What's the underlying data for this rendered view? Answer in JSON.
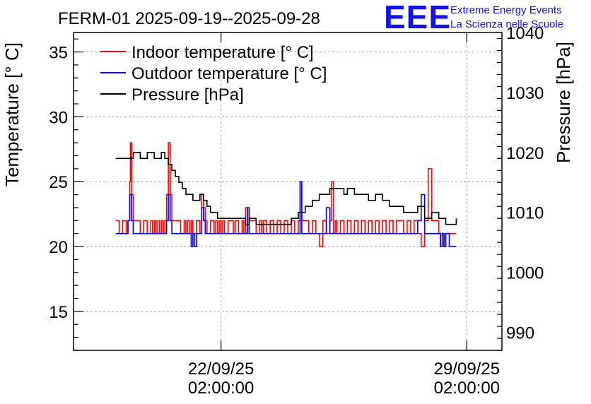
{
  "chart_data": {
    "type": "line",
    "title": "FERM-01 2025-09-19--2025-09-28",
    "logo": {
      "mark": "EEE",
      "line1": "Extreme Energy Events",
      "line2": "La Scienza nelle Scuole",
      "color": "#1010ff"
    },
    "ylabel": "Temperature [° C]",
    "y2label": "Pressure [hPa]",
    "ylim": [
      12,
      36.5
    ],
    "y2lim": [
      987,
      1040
    ],
    "yticks": [
      15,
      20,
      25,
      30,
      35
    ],
    "y2ticks": [
      990,
      1000,
      1010,
      1020,
      1030,
      1040
    ],
    "xlim": [
      -1.2,
      11.0
    ],
    "xticks": [
      {
        "x": 3.0,
        "date": "22/09/25",
        "time": "02:00:00"
      },
      {
        "x": 10.0,
        "date": "29/09/25",
        "time": "02:00:00"
      }
    ],
    "grid": true,
    "legend_position": "top-left",
    "series": [
      {
        "name": "Indoor temperature [° C]",
        "color": "#ff0000",
        "axis": "left",
        "x": [
          0.0,
          0.1,
          0.2,
          0.3,
          0.35,
          0.4,
          0.42,
          0.45,
          0.5,
          0.6,
          0.7,
          0.8,
          0.9,
          1.0,
          1.05,
          1.1,
          1.15,
          1.2,
          1.25,
          1.3,
          1.35,
          1.4,
          1.45,
          1.5,
          1.55,
          1.6,
          1.7,
          1.8,
          1.85,
          1.9,
          1.95,
          2.0,
          2.05,
          2.1,
          2.15,
          2.2,
          2.3,
          2.4,
          2.45,
          2.5,
          2.55,
          2.6,
          2.7,
          2.8,
          2.85,
          2.9,
          2.95,
          3.0,
          3.05,
          3.1,
          3.2,
          3.3,
          3.35,
          3.4,
          3.5,
          3.6,
          3.65,
          3.7,
          3.75,
          3.8,
          3.9,
          4.0,
          4.1,
          4.15,
          4.2,
          4.3,
          4.4,
          4.5,
          4.6,
          4.7,
          4.8,
          4.9,
          5.0,
          5.1,
          5.2,
          5.25,
          5.3,
          5.4,
          5.5,
          5.6,
          5.7,
          5.8,
          5.9,
          6.0,
          6.1,
          6.15,
          6.2,
          6.25,
          6.3,
          6.4,
          6.5,
          6.6,
          6.7,
          6.8,
          6.9,
          7.0,
          7.1,
          7.2,
          7.3,
          7.4,
          7.5,
          7.6,
          7.7,
          7.8,
          7.9,
          8.0,
          8.1,
          8.2,
          8.3,
          8.4,
          8.5,
          8.6,
          8.7,
          8.8,
          8.9,
          9.0,
          9.1,
          9.2,
          9.25,
          9.3,
          9.35,
          9.4,
          9.5,
          9.6,
          9.7
        ],
        "values": [
          22,
          21,
          22,
          21,
          22,
          25,
          28,
          24,
          22,
          22,
          21,
          22,
          21,
          22,
          21,
          22,
          21,
          22,
          21,
          22,
          21,
          22,
          24,
          28,
          24,
          22,
          22,
          22,
          21,
          21,
          22,
          21,
          22,
          21,
          22,
          21,
          22,
          21,
          24,
          23,
          22,
          21,
          22,
          21,
          22,
          21,
          22,
          21,
          22,
          21,
          22,
          22,
          21,
          22,
          21,
          22,
          21,
          23,
          21,
          22,
          22,
          21,
          22,
          21,
          22,
          21,
          22,
          21,
          22,
          21,
          22,
          21,
          22,
          21,
          22,
          25,
          22,
          22,
          21,
          22,
          21,
          20,
          22,
          21,
          22,
          25,
          21,
          22,
          21,
          22,
          21,
          22,
          21,
          22,
          21,
          22,
          21,
          22,
          21,
          22,
          21,
          22,
          21,
          22,
          21,
          22,
          22,
          21,
          22,
          21,
          22,
          21,
          20,
          22,
          26,
          22,
          22,
          21,
          20,
          21,
          20,
          21,
          21,
          21,
          21
        ]
      },
      {
        "name": "Outdoor temperature [° C]",
        "color": "#0000ff",
        "axis": "left",
        "x": [
          0.0,
          0.3,
          0.35,
          0.4,
          0.42,
          0.45,
          0.5,
          0.6,
          1.0,
          1.4,
          1.45,
          1.5,
          1.55,
          1.6,
          1.7,
          2.1,
          2.15,
          2.2,
          2.25,
          2.3,
          2.4,
          2.45,
          2.5,
          2.55,
          2.6,
          2.7,
          3.0,
          3.5,
          3.7,
          3.75,
          3.8,
          3.9,
          4.5,
          5.0,
          5.2,
          5.25,
          5.3,
          5.4,
          5.9,
          6.0,
          6.1,
          6.2,
          6.5,
          7.0,
          7.5,
          8.0,
          8.3,
          8.5,
          8.6,
          8.7,
          8.8,
          9.1,
          9.2,
          9.25,
          9.3,
          9.35,
          9.4,
          9.5,
          9.7
        ],
        "values": [
          21,
          21,
          22,
          24,
          24,
          22,
          21,
          21,
          21,
          21,
          22,
          24,
          22,
          21,
          21,
          21,
          20,
          21,
          20,
          21,
          21,
          23,
          22,
          21,
          21,
          21,
          21,
          21,
          21,
          23,
          21,
          21,
          21,
          21,
          21,
          25,
          21,
          21,
          21,
          23,
          21,
          21,
          21,
          21,
          21,
          21,
          21,
          21,
          22,
          24,
          21,
          21,
          21,
          20,
          21,
          20,
          21,
          20,
          20
        ]
      },
      {
        "name": "Pressure [hPa]",
        "color": "#000000",
        "axis": "right",
        "x": [
          0.0,
          0.3,
          0.5,
          0.7,
          0.9,
          1.1,
          1.3,
          1.4,
          1.5,
          1.6,
          1.7,
          1.8,
          1.9,
          2.0,
          2.2,
          2.3,
          2.4,
          2.5,
          2.6,
          2.7,
          2.8,
          2.9,
          3.0,
          3.2,
          3.5,
          3.7,
          3.8,
          4.0,
          4.3,
          4.6,
          4.9,
          5.0,
          5.2,
          5.4,
          5.6,
          5.8,
          6.0,
          6.1,
          6.3,
          6.5,
          6.6,
          6.8,
          7.0,
          7.2,
          7.4,
          7.6,
          7.8,
          8.0,
          8.2,
          8.4,
          8.6,
          8.8,
          9.0,
          9.2,
          9.4,
          9.6,
          9.7
        ],
        "values": [
          1019,
          1019,
          1020,
          1019,
          1020,
          1019,
          1020,
          1019,
          1018,
          1017,
          1016,
          1015,
          1014,
          1013,
          1012,
          1012,
          1013,
          1012,
          1011,
          1010,
          1010,
          1009,
          1009,
          1009,
          1009,
          1008,
          1009,
          1008,
          1008,
          1008,
          1008,
          1009,
          1010,
          1011,
          1012,
          1013,
          1013,
          1014,
          1014,
          1013,
          1014,
          1013,
          1013,
          1012,
          1013,
          1012,
          1011,
          1011,
          1010,
          1010,
          1011,
          1009,
          1010,
          1009,
          1008,
          1008,
          1009
        ]
      }
    ]
  }
}
